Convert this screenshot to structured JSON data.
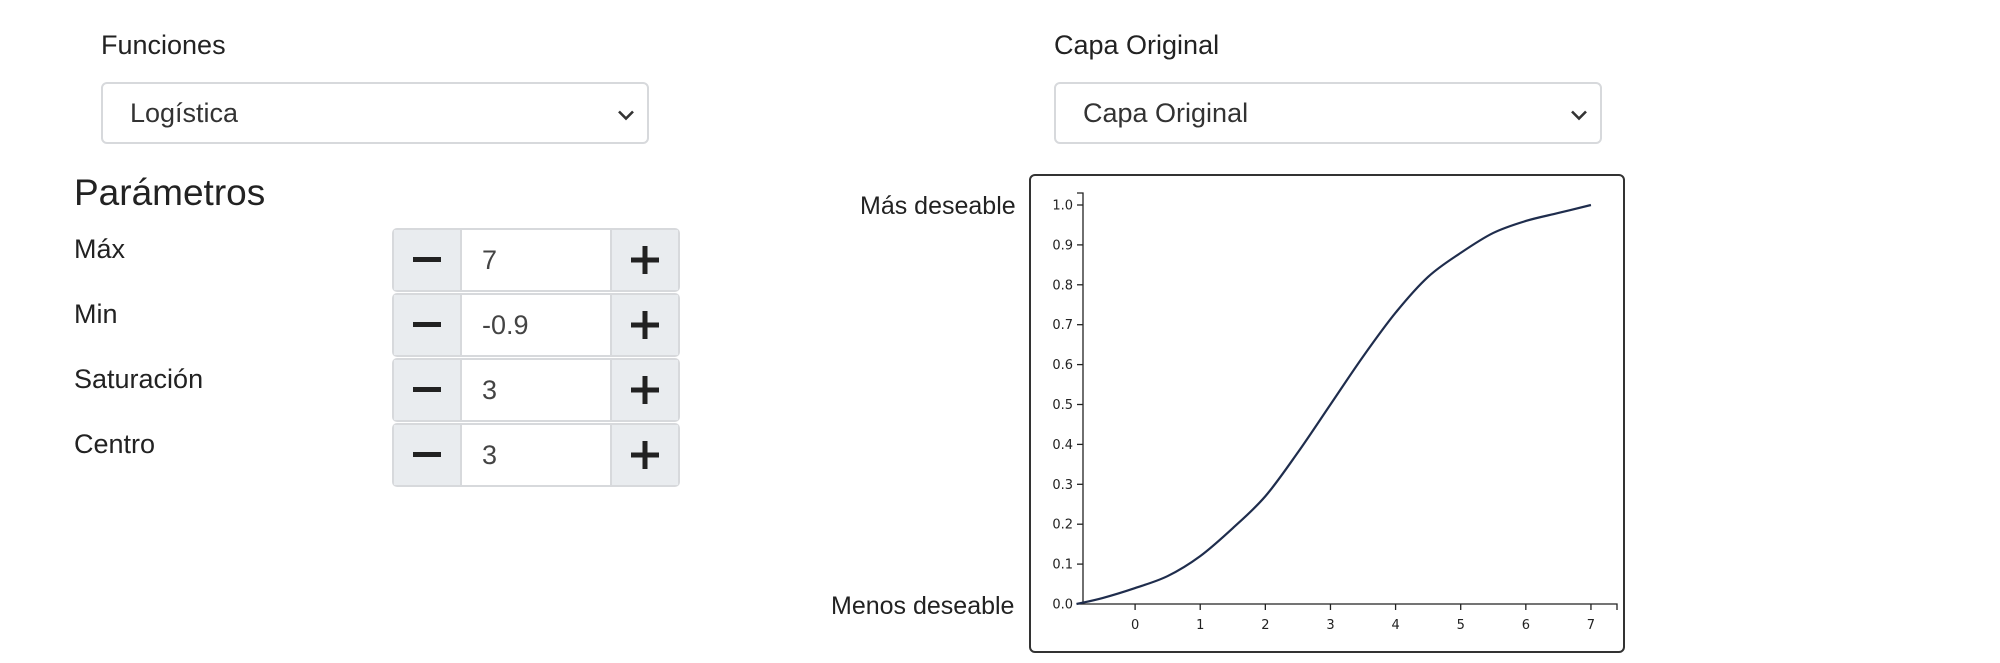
{
  "functions": {
    "label": "Funciones",
    "selected": "Logística"
  },
  "layer": {
    "label": "Capa Original",
    "selected": "Capa Original"
  },
  "params": {
    "heading": "Parámetros",
    "items": [
      {
        "label": "Máx",
        "value": "7"
      },
      {
        "label": "Min",
        "value": "-0.9"
      },
      {
        "label": "Saturación",
        "value": "3"
      },
      {
        "label": "Centro",
        "value": "3"
      }
    ]
  },
  "icons": {
    "minus": "minus-icon",
    "plus": "plus-icon",
    "chevron": "chevron-down-icon"
  },
  "colors": {
    "curve": "#1f2d4d",
    "button_bg": "#e9ecef",
    "border": "#d7d9dc"
  },
  "chart_data": {
    "type": "line",
    "ylabel_top": "Más deseable",
    "ylabel_bottom": "Menos deseable",
    "x_ticks": [
      "0",
      "1",
      "2",
      "3",
      "4",
      "5",
      "6",
      "7"
    ],
    "y_ticks": [
      "0.0",
      "0.1",
      "0.2",
      "0.3",
      "0.4",
      "0.5",
      "0.6",
      "0.7",
      "0.8",
      "0.9",
      "1.0"
    ],
    "xlim": [
      -0.8,
      7.4
    ],
    "ylim": [
      0,
      1
    ],
    "series": [
      {
        "x": [
          -0.9,
          -0.5,
          0,
          0.5,
          1,
          1.5,
          2,
          2.5,
          3,
          3.5,
          4,
          4.5,
          5,
          5.5,
          6,
          6.5,
          7
        ],
        "y": [
          0.0,
          0.015,
          0.04,
          0.07,
          0.12,
          0.19,
          0.27,
          0.38,
          0.5,
          0.62,
          0.73,
          0.82,
          0.88,
          0.93,
          0.96,
          0.98,
          1.0
        ]
      }
    ]
  }
}
